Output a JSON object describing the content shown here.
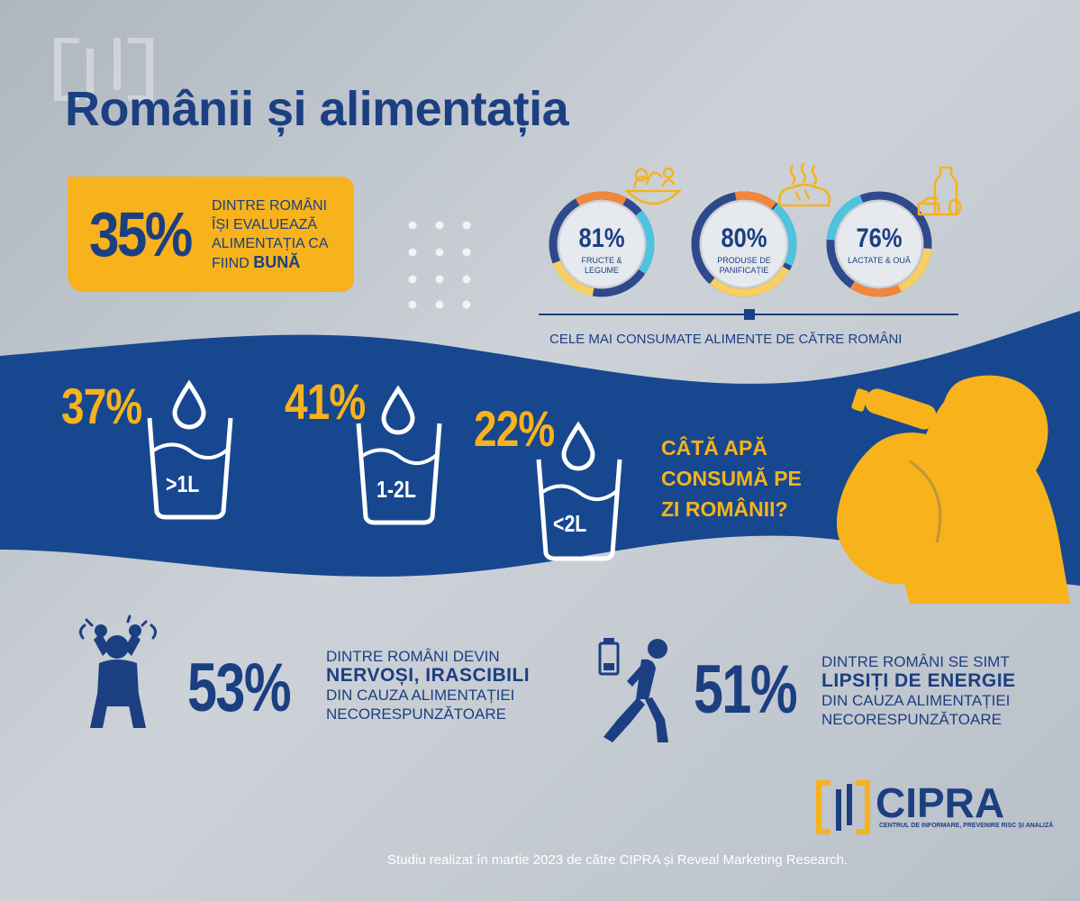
{
  "title": "Românii și alimentația",
  "evaluation": {
    "value": "35%",
    "line1": "DINTRE ROMÂNI",
    "line2": "ÎȘI EVALUEAZĂ",
    "line3": "ALIMENTAȚIA CA",
    "line4_prefix": "FIIND ",
    "line4_bold": "BUNĂ"
  },
  "foods": [
    {
      "value": "81%",
      "label": "FRUCTE & LEGUME",
      "icon": "salad-bowl-icon"
    },
    {
      "value": "80%",
      "label": "PRODUSE DE PANIFICAȚIE",
      "icon": "bread-icon"
    },
    {
      "value": "76%",
      "label": "LACTATE & OUĂ",
      "icon": "milk-eggs-icon"
    }
  ],
  "foods_caption": "CELE MAI CONSUMATE ALIMENTE DE CĂTRE ROMÂNI",
  "water": {
    "items": [
      {
        "value": "37%",
        "label": ">1L",
        "icon": "water-glass-icon"
      },
      {
        "value": "41%",
        "label": "1-2L",
        "icon": "water-glass-icon"
      },
      {
        "value": "22%",
        "label": "<2L",
        "icon": "water-glass-icon"
      }
    ],
    "question_line1": "CÂTĂ APĂ",
    "question_line2": "CONSUMĂ PE",
    "question_line3": "ZI ROMÂNII?"
  },
  "nervous": {
    "value": "53%",
    "line1": "DINTRE ROMÂNI DEVIN",
    "line2": "NERVOȘI, IRASCIBILI",
    "line3": "DIN CAUZA ALIMENTAȚIEI",
    "line4": "NECORESPUNZĂTOARE",
    "icon": "angry-person-icon"
  },
  "energy": {
    "value": "51%",
    "line1": "DINTRE ROMÂNI SE SIMT",
    "line2": "LIPSIȚI DE ENERGIE",
    "line3": "DIN CAUZA ALIMENTAȚIEI",
    "line4": "NECORESPUNZĂTOARE",
    "icon": "tired-person-icon"
  },
  "logo": {
    "name": "CIPRA",
    "subtitle": "CENTRUL DE INFORMARE, PREVENIRE RISC ȘI ANALIZĂ"
  },
  "footer": "Studiu realizat în martie 2023 de către CIPRA și Reveal Marketing Research.",
  "colors": {
    "navy": "#1c3f82",
    "gold": "#f7b21c",
    "background": "#c3c9d0"
  }
}
